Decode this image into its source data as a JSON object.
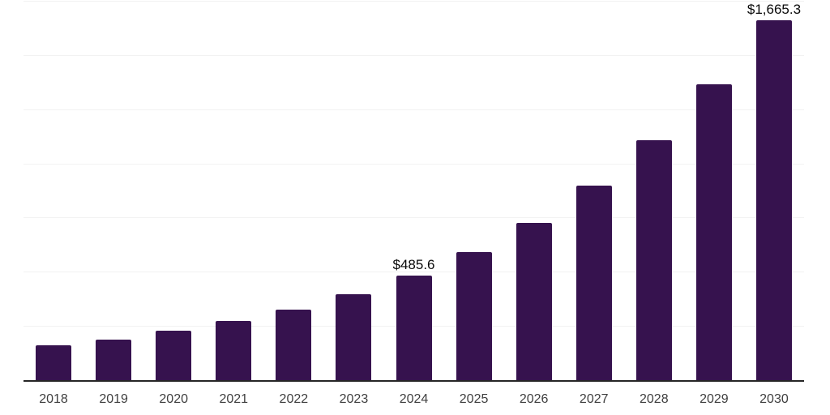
{
  "chart_style": {
    "background": "#ffffff",
    "bar_color": "#36124E",
    "axis_line_color": "#262626",
    "gridline_color": "#f2f2f2",
    "tick_label_color": "#3f3f3f",
    "data_label_color": "#0a0a0a"
  },
  "chart_data": {
    "type": "bar",
    "title": "",
    "xlabel": "",
    "ylabel": "",
    "categories": [
      "2018",
      "2019",
      "2020",
      "2021",
      "2022",
      "2023",
      "2024",
      "2025",
      "2026",
      "2027",
      "2028",
      "2029",
      "2030"
    ],
    "values": [
      165,
      191,
      231,
      278,
      330,
      399,
      485.6,
      596,
      731,
      901,
      1110,
      1370,
      1665.3
    ],
    "data_labels": [
      {
        "category": "2024",
        "text": "$485.6"
      },
      {
        "category": "2030",
        "text": "$1,665.3"
      }
    ],
    "ylim": [
      0,
      1750
    ],
    "gridline_step": 250,
    "grid": true,
    "legend": false,
    "y_tick_labels_visible": false
  }
}
